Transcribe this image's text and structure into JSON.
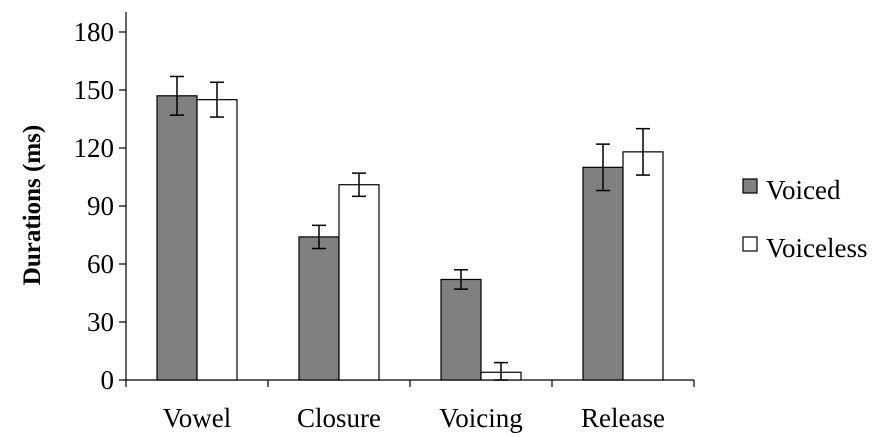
{
  "chart_data": {
    "type": "bar",
    "title": "",
    "xlabel": "",
    "ylabel": "Durations (ms)",
    "ylim": [
      0,
      180
    ],
    "yticks": [
      0,
      30,
      60,
      90,
      120,
      150,
      180
    ],
    "categories": [
      "Vowel",
      "Closure",
      "Voicing",
      "Release"
    ],
    "series": [
      {
        "name": "Voiced",
        "color": "#808080",
        "values": [
          147,
          74,
          52,
          110
        ],
        "errors": [
          10,
          6,
          5,
          12
        ]
      },
      {
        "name": "Voiceless",
        "color": "#ffffff",
        "values": [
          145,
          101,
          4,
          118
        ],
        "errors": [
          9,
          6,
          5,
          12
        ]
      }
    ],
    "error_bars": true,
    "grid": false,
    "legend_position": "right"
  }
}
